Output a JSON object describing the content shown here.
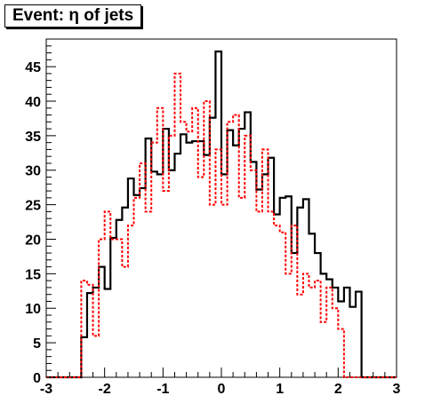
{
  "chart_data": {
    "type": "step-histogram",
    "title": "Event: η of jets",
    "xlabel": "",
    "ylabel": "",
    "xlim": [
      -3,
      3
    ],
    "ylim": [
      0,
      49
    ],
    "x_ticks": [
      -3,
      -2,
      -1,
      0,
      1,
      2,
      3
    ],
    "y_ticks": [
      0,
      5,
      10,
      15,
      20,
      25,
      30,
      35,
      40,
      45
    ],
    "grid": false,
    "legend": "none",
    "bin_edges": [
      -3.0,
      -2.9,
      -2.8,
      -2.7,
      -2.6,
      -2.5,
      -2.4,
      -2.3,
      -2.2,
      -2.1,
      -2.0,
      -1.9,
      -1.8,
      -1.7,
      -1.6,
      -1.5,
      -1.4,
      -1.3,
      -1.2,
      -1.1,
      -1.0,
      -0.9,
      -0.8,
      -0.7,
      -0.6,
      -0.5,
      -0.4,
      -0.3,
      -0.2,
      -0.1,
      0.0,
      0.1,
      0.2,
      0.3,
      0.4,
      0.5,
      0.6,
      0.7,
      0.8,
      0.9,
      1.0,
      1.1,
      1.2,
      1.3,
      1.4,
      1.5,
      1.6,
      1.7,
      1.8,
      1.9,
      2.0,
      2.1,
      2.2,
      2.3,
      2.4,
      2.5,
      2.6,
      2.7,
      2.8,
      2.9,
      3.0
    ],
    "series": [
      {
        "color": "#000000",
        "style": "solid",
        "values": [
          0,
          0,
          0,
          0,
          0,
          0,
          5.8,
          12.2,
          13.0,
          16.0,
          12.8,
          20.2,
          22.8,
          24.6,
          28.8,
          26.4,
          27.4,
          34.6,
          29.8,
          29.4,
          36.0,
          30.0,
          32.4,
          35.2,
          34.0,
          34.2,
          34.2,
          32.2,
          37.6,
          47.2,
          29.4,
          35.8,
          33.6,
          36.0,
          38.4,
          31.2,
          27.2,
          29.4,
          31.8,
          23.6,
          26.0,
          26.2,
          18.0,
          24.6,
          25.8,
          20.8,
          18.0,
          15.0,
          14.2,
          13.0,
          11.0,
          13.0,
          10.2,
          12.4,
          0,
          0,
          0,
          0,
          0,
          0
        ]
      },
      {
        "color": "#ff0000",
        "style": "dashed",
        "values": [
          0,
          0,
          0,
          0,
          0,
          0,
          14.0,
          13.4,
          6.0,
          20.0,
          24.0,
          20.0,
          20.0,
          16.0,
          22.0,
          26.0,
          31.0,
          24.0,
          34.0,
          39.0,
          27.0,
          35.0,
          44.0,
          37.0,
          35.6,
          39.0,
          29.0,
          40.0,
          25.0,
          33.0,
          25.0,
          37.0,
          38.0,
          26.0,
          35.0,
          30.0,
          24.0,
          33.0,
          24.0,
          22.0,
          21.0,
          15.0,
          22.0,
          12.0,
          15.0,
          13.0,
          14.0,
          8.0,
          13.0,
          10.0,
          7.0,
          0,
          0,
          0,
          0,
          0,
          0,
          0,
          0,
          0
        ]
      }
    ]
  }
}
